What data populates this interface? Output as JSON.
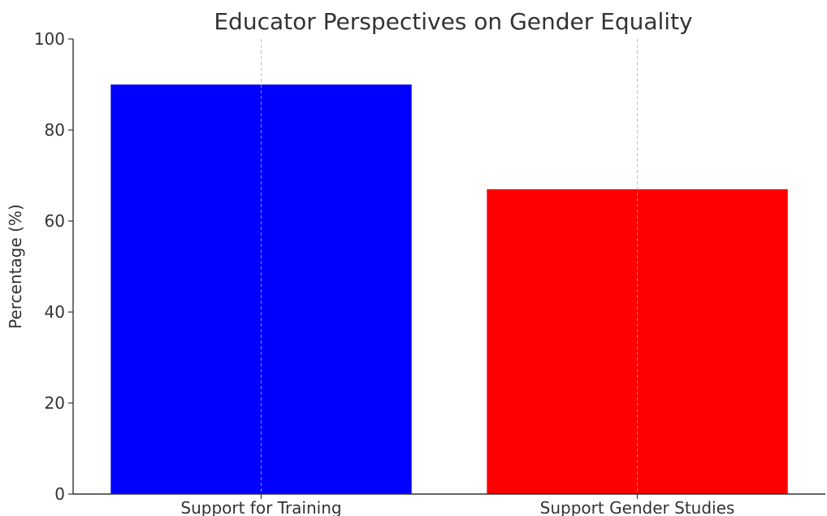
{
  "chart_data": {
    "type": "bar",
    "title": "Educator Perspectives on Gender Equality",
    "xlabel": "",
    "ylabel": "Percentage (%)",
    "categories": [
      "Support for Training",
      "Support Gender Studies"
    ],
    "values": [
      90,
      67
    ],
    "colors": [
      "#0000ff",
      "#ff0000"
    ],
    "ylim": [
      0,
      100
    ],
    "yticks": [
      0,
      20,
      40,
      60,
      80,
      100
    ],
    "grid": "x-axis dashed",
    "legend": "none"
  }
}
